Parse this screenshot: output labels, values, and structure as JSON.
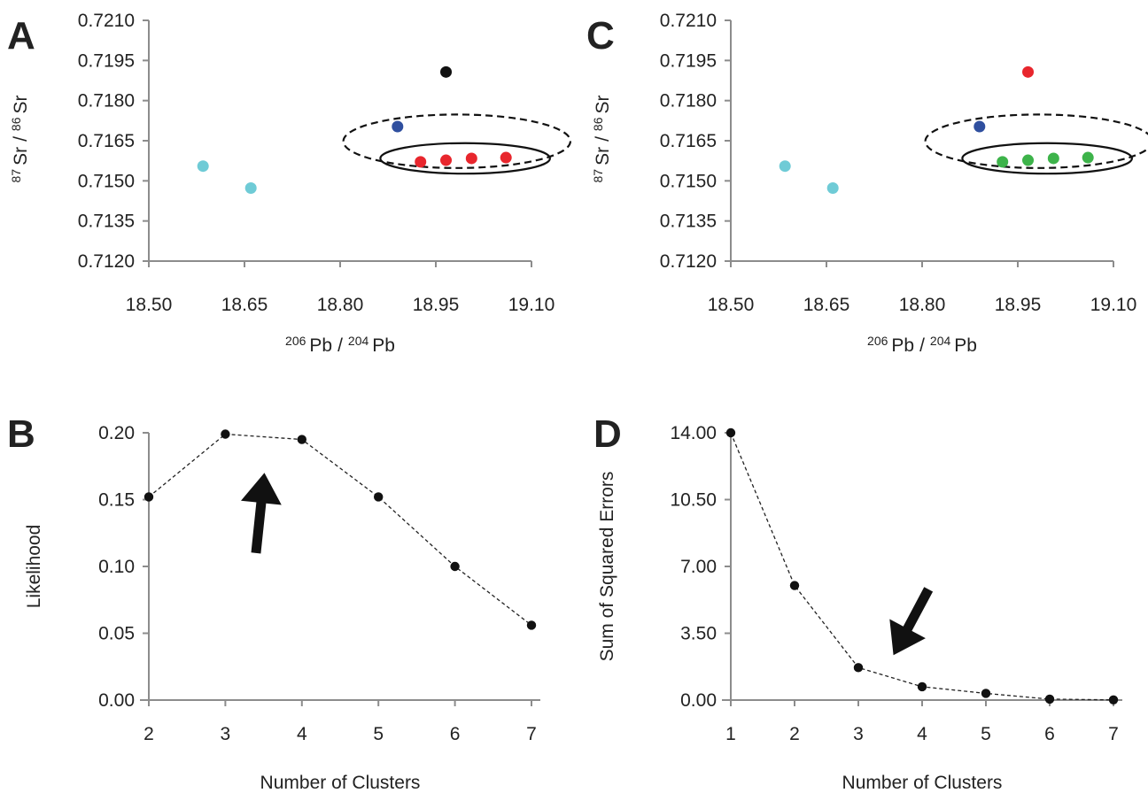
{
  "chart_data": [
    {
      "panel": "A",
      "type": "scatter",
      "title": "",
      "xlabel": {
        "sup1": "206",
        "base1": "Pb",
        "slash": "/",
        "sup2": "204",
        "base2": "Pb"
      },
      "ylabel": {
        "sup1": "87",
        "base1": "Sr",
        "slash": "/",
        "sup2": "86",
        "base2": "Sr"
      },
      "xlim": [
        18.5,
        19.1
      ],
      "ylim": [
        0.712,
        0.721
      ],
      "xticks": [
        "18.50",
        "18.65",
        "18.80",
        "18.95",
        "19.10"
      ],
      "yticks": [
        "0.7120",
        "0.7135",
        "0.7150",
        "0.7165",
        "0.7180",
        "0.7195",
        "0.7210"
      ],
      "points": [
        {
          "x": 18.585,
          "y": 0.71555,
          "color": "#6fcbd6"
        },
        {
          "x": 18.66,
          "y": 0.71473,
          "color": "#6fcbd6"
        },
        {
          "x": 18.89,
          "y": 0.71703,
          "color": "#2f4f9f"
        },
        {
          "x": 18.966,
          "y": 0.71907,
          "color": "#111111"
        },
        {
          "x": 18.926,
          "y": 0.71571,
          "color": "#e8262d"
        },
        {
          "x": 18.966,
          "y": 0.71577,
          "color": "#e8262d"
        },
        {
          "x": 19.006,
          "y": 0.71584,
          "color": "#e8262d"
        },
        {
          "x": 19.06,
          "y": 0.71587,
          "color": "#e8262d"
        }
      ],
      "ellipses": [
        {
          "cx": 18.983,
          "cy": 0.71648,
          "rx": 0.178,
          "ry": 0.001,
          "style": "dashed"
        },
        {
          "cx": 18.996,
          "cy": 0.71584,
          "rx": 0.133,
          "ry": 0.00057,
          "style": "solid"
        }
      ],
      "grid": false
    },
    {
      "panel": "C",
      "type": "scatter",
      "title": "",
      "xlabel": {
        "sup1": "206",
        "base1": "Pb",
        "slash": "/",
        "sup2": "204",
        "base2": "Pb"
      },
      "ylabel": {
        "sup1": "87",
        "base1": "Sr",
        "slash": "/",
        "sup2": "86",
        "base2": "Sr"
      },
      "xlim": [
        18.5,
        19.1
      ],
      "ylim": [
        0.712,
        0.721
      ],
      "xticks": [
        "18.50",
        "18.65",
        "18.80",
        "18.95",
        "19.10"
      ],
      "yticks": [
        "0.7120",
        "0.7135",
        "0.7150",
        "0.7165",
        "0.7180",
        "0.7195",
        "0.7210"
      ],
      "points": [
        {
          "x": 18.585,
          "y": 0.71555,
          "color": "#6fcbd6"
        },
        {
          "x": 18.66,
          "y": 0.71473,
          "color": "#6fcbd6"
        },
        {
          "x": 18.89,
          "y": 0.71703,
          "color": "#2f4f9f"
        },
        {
          "x": 18.966,
          "y": 0.71907,
          "color": "#e8262d"
        },
        {
          "x": 18.926,
          "y": 0.71571,
          "color": "#3db34a"
        },
        {
          "x": 18.966,
          "y": 0.71577,
          "color": "#3db34a"
        },
        {
          "x": 19.006,
          "y": 0.71584,
          "color": "#3db34a"
        },
        {
          "x": 19.06,
          "y": 0.71587,
          "color": "#3db34a"
        }
      ],
      "ellipses": [
        {
          "cx": 18.983,
          "cy": 0.71648,
          "rx": 0.178,
          "ry": 0.001,
          "style": "dashed"
        },
        {
          "cx": 18.996,
          "cy": 0.71584,
          "rx": 0.133,
          "ry": 0.00057,
          "style": "solid"
        }
      ],
      "grid": false
    },
    {
      "panel": "B",
      "type": "line",
      "title": "",
      "xlabel": "Number of Clusters",
      "ylabel": "Likelihood",
      "xlim": [
        2,
        7
      ],
      "ylim": [
        0.0,
        0.2
      ],
      "xticks": [
        "2",
        "3",
        "4",
        "5",
        "6",
        "7"
      ],
      "yticks": [
        "0.00",
        "0.05",
        "0.10",
        "0.15",
        "0.20"
      ],
      "x": [
        2,
        3,
        4,
        5,
        6,
        7
      ],
      "values": [
        0.152,
        0.199,
        0.195,
        0.152,
        0.1,
        0.056
      ],
      "line_style": "dashed",
      "arrow": {
        "from": [
          3.4,
          0.11
        ],
        "to": [
          3.51,
          0.17
        ],
        "direction": "up"
      },
      "grid": false
    },
    {
      "panel": "D",
      "type": "line",
      "title": "",
      "xlabel": "Number of Clusters",
      "ylabel": "Sum of Squared Errors",
      "xlim": [
        1,
        7
      ],
      "ylim": [
        0.0,
        14.0
      ],
      "xticks": [
        "1",
        "2",
        "3",
        "4",
        "5",
        "6",
        "7"
      ],
      "yticks": [
        "0.00",
        "3.50",
        "7.00",
        "10.50",
        "14.00"
      ],
      "x": [
        1,
        2,
        3,
        4,
        5,
        6,
        7
      ],
      "values": [
        14.0,
        6.0,
        1.7,
        0.7,
        0.35,
        0.05,
        0.01
      ],
      "line_style": "dashed",
      "arrow": {
        "from": [
          4.1,
          5.8
        ],
        "to": [
          3.55,
          2.35
        ],
        "direction": "down-left"
      },
      "grid": false
    }
  ]
}
